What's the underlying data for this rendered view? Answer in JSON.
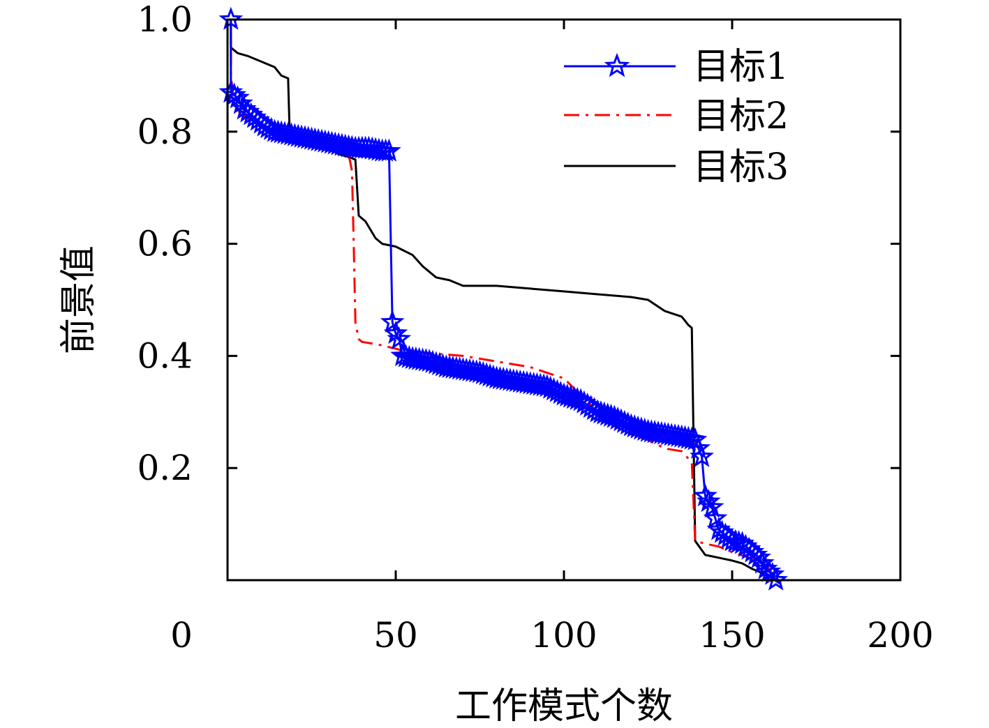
{
  "chart_data": {
    "type": "line",
    "title": "",
    "xlabel": "工作模式个数",
    "ylabel": "前景值",
    "xlim": [
      0,
      200
    ],
    "ylim": [
      0,
      1.0
    ],
    "x_ticks": [
      0,
      50,
      100,
      150,
      200
    ],
    "x_tick_labels": [
      "0",
      "50",
      "100",
      "150",
      "200"
    ],
    "y_ticks": [
      0.2,
      0.4,
      0.6,
      0.8,
      1.0
    ],
    "y_tick_labels": [
      "0.2",
      "0.4",
      "0.6",
      "0.8",
      "1.0"
    ],
    "grid": false,
    "legend_position": "top-right",
    "series": [
      {
        "name": "目标1",
        "color": "#0000ff",
        "line_style": "solid",
        "marker": "star",
        "points": [
          [
            1,
            1.0
          ],
          [
            1,
            0.87
          ],
          [
            3,
            0.86
          ],
          [
            5,
            0.84
          ],
          [
            7,
            0.83
          ],
          [
            9,
            0.82
          ],
          [
            11,
            0.81
          ],
          [
            14,
            0.8
          ],
          [
            18,
            0.795
          ],
          [
            22,
            0.79
          ],
          [
            26,
            0.785
          ],
          [
            30,
            0.78
          ],
          [
            34,
            0.775
          ],
          [
            38,
            0.77
          ],
          [
            42,
            0.77
          ],
          [
            46,
            0.765
          ],
          [
            48,
            0.765
          ],
          [
            49,
            0.46
          ],
          [
            50,
            0.44
          ],
          [
            51,
            0.43
          ],
          [
            52,
            0.4
          ],
          [
            55,
            0.395
          ],
          [
            60,
            0.39
          ],
          [
            65,
            0.38
          ],
          [
            70,
            0.375
          ],
          [
            75,
            0.37
          ],
          [
            80,
            0.36
          ],
          [
            85,
            0.355
          ],
          [
            90,
            0.35
          ],
          [
            95,
            0.345
          ],
          [
            100,
            0.33
          ],
          [
            105,
            0.32
          ],
          [
            110,
            0.3
          ],
          [
            115,
            0.29
          ],
          [
            120,
            0.275
          ],
          [
            125,
            0.265
          ],
          [
            130,
            0.26
          ],
          [
            135,
            0.255
          ],
          [
            139,
            0.25
          ],
          [
            141,
            0.22
          ],
          [
            142,
            0.15
          ],
          [
            144,
            0.13
          ],
          [
            146,
            0.09
          ],
          [
            148,
            0.08
          ],
          [
            150,
            0.07
          ],
          [
            153,
            0.065
          ],
          [
            156,
            0.05
          ],
          [
            158,
            0.04
          ],
          [
            160,
            0.02
          ],
          [
            162,
            0.01
          ],
          [
            163,
            0.0
          ]
        ]
      },
      {
        "name": "目标2",
        "color": "#ff0000",
        "line_style": "dashdot",
        "marker": "none",
        "points": [
          [
            1,
            1.0
          ],
          [
            1,
            0.9
          ],
          [
            2,
            0.85
          ],
          [
            4,
            0.83
          ],
          [
            7,
            0.82
          ],
          [
            10,
            0.81
          ],
          [
            14,
            0.8
          ],
          [
            18,
            0.795
          ],
          [
            22,
            0.79
          ],
          [
            26,
            0.785
          ],
          [
            30,
            0.78
          ],
          [
            33,
            0.775
          ],
          [
            36,
            0.76
          ],
          [
            37,
            0.73
          ],
          [
            37.5,
            0.6
          ],
          [
            38,
            0.46
          ],
          [
            39,
            0.43
          ],
          [
            40,
            0.425
          ],
          [
            45,
            0.42
          ],
          [
            52,
            0.41
          ],
          [
            60,
            0.405
          ],
          [
            70,
            0.4
          ],
          [
            80,
            0.39
          ],
          [
            90,
            0.38
          ],
          [
            100,
            0.36
          ],
          [
            105,
            0.33
          ],
          [
            110,
            0.3
          ],
          [
            115,
            0.275
          ],
          [
            120,
            0.26
          ],
          [
            125,
            0.25
          ],
          [
            130,
            0.235
          ],
          [
            135,
            0.23
          ],
          [
            138,
            0.21
          ],
          [
            139,
            0.07
          ],
          [
            142,
            0.065
          ],
          [
            146,
            0.06
          ],
          [
            150,
            0.05
          ],
          [
            155,
            0.04
          ],
          [
            160,
            0.03
          ],
          [
            162,
            0.01
          ],
          [
            163,
            0.005
          ]
        ]
      },
      {
        "name": "目标3",
        "color": "#000000",
        "line_style": "solid",
        "marker": "none",
        "points": [
          [
            1,
            1.0
          ],
          [
            1,
            0.95
          ],
          [
            3,
            0.94
          ],
          [
            6,
            0.935
          ],
          [
            10,
            0.925
          ],
          [
            14,
            0.915
          ],
          [
            16,
            0.9
          ],
          [
            18,
            0.895
          ],
          [
            18.5,
            0.79
          ],
          [
            22,
            0.785
          ],
          [
            26,
            0.78
          ],
          [
            30,
            0.77
          ],
          [
            33,
            0.76
          ],
          [
            36,
            0.755
          ],
          [
            38,
            0.75
          ],
          [
            39,
            0.65
          ],
          [
            41,
            0.64
          ],
          [
            44,
            0.61
          ],
          [
            46,
            0.6
          ],
          [
            50,
            0.595
          ],
          [
            55,
            0.58
          ],
          [
            58,
            0.56
          ],
          [
            62,
            0.54
          ],
          [
            66,
            0.535
          ],
          [
            70,
            0.525
          ],
          [
            80,
            0.525
          ],
          [
            90,
            0.52
          ],
          [
            100,
            0.515
          ],
          [
            110,
            0.51
          ],
          [
            120,
            0.505
          ],
          [
            125,
            0.5
          ],
          [
            130,
            0.48
          ],
          [
            135,
            0.47
          ],
          [
            137,
            0.455
          ],
          [
            138,
            0.45
          ],
          [
            139,
            0.07
          ],
          [
            142,
            0.045
          ],
          [
            146,
            0.04
          ],
          [
            150,
            0.035
          ],
          [
            153,
            0.03
          ],
          [
            156,
            0.02
          ],
          [
            158,
            0.015
          ],
          [
            160,
            0.01
          ],
          [
            163,
            0.0
          ]
        ]
      }
    ]
  }
}
